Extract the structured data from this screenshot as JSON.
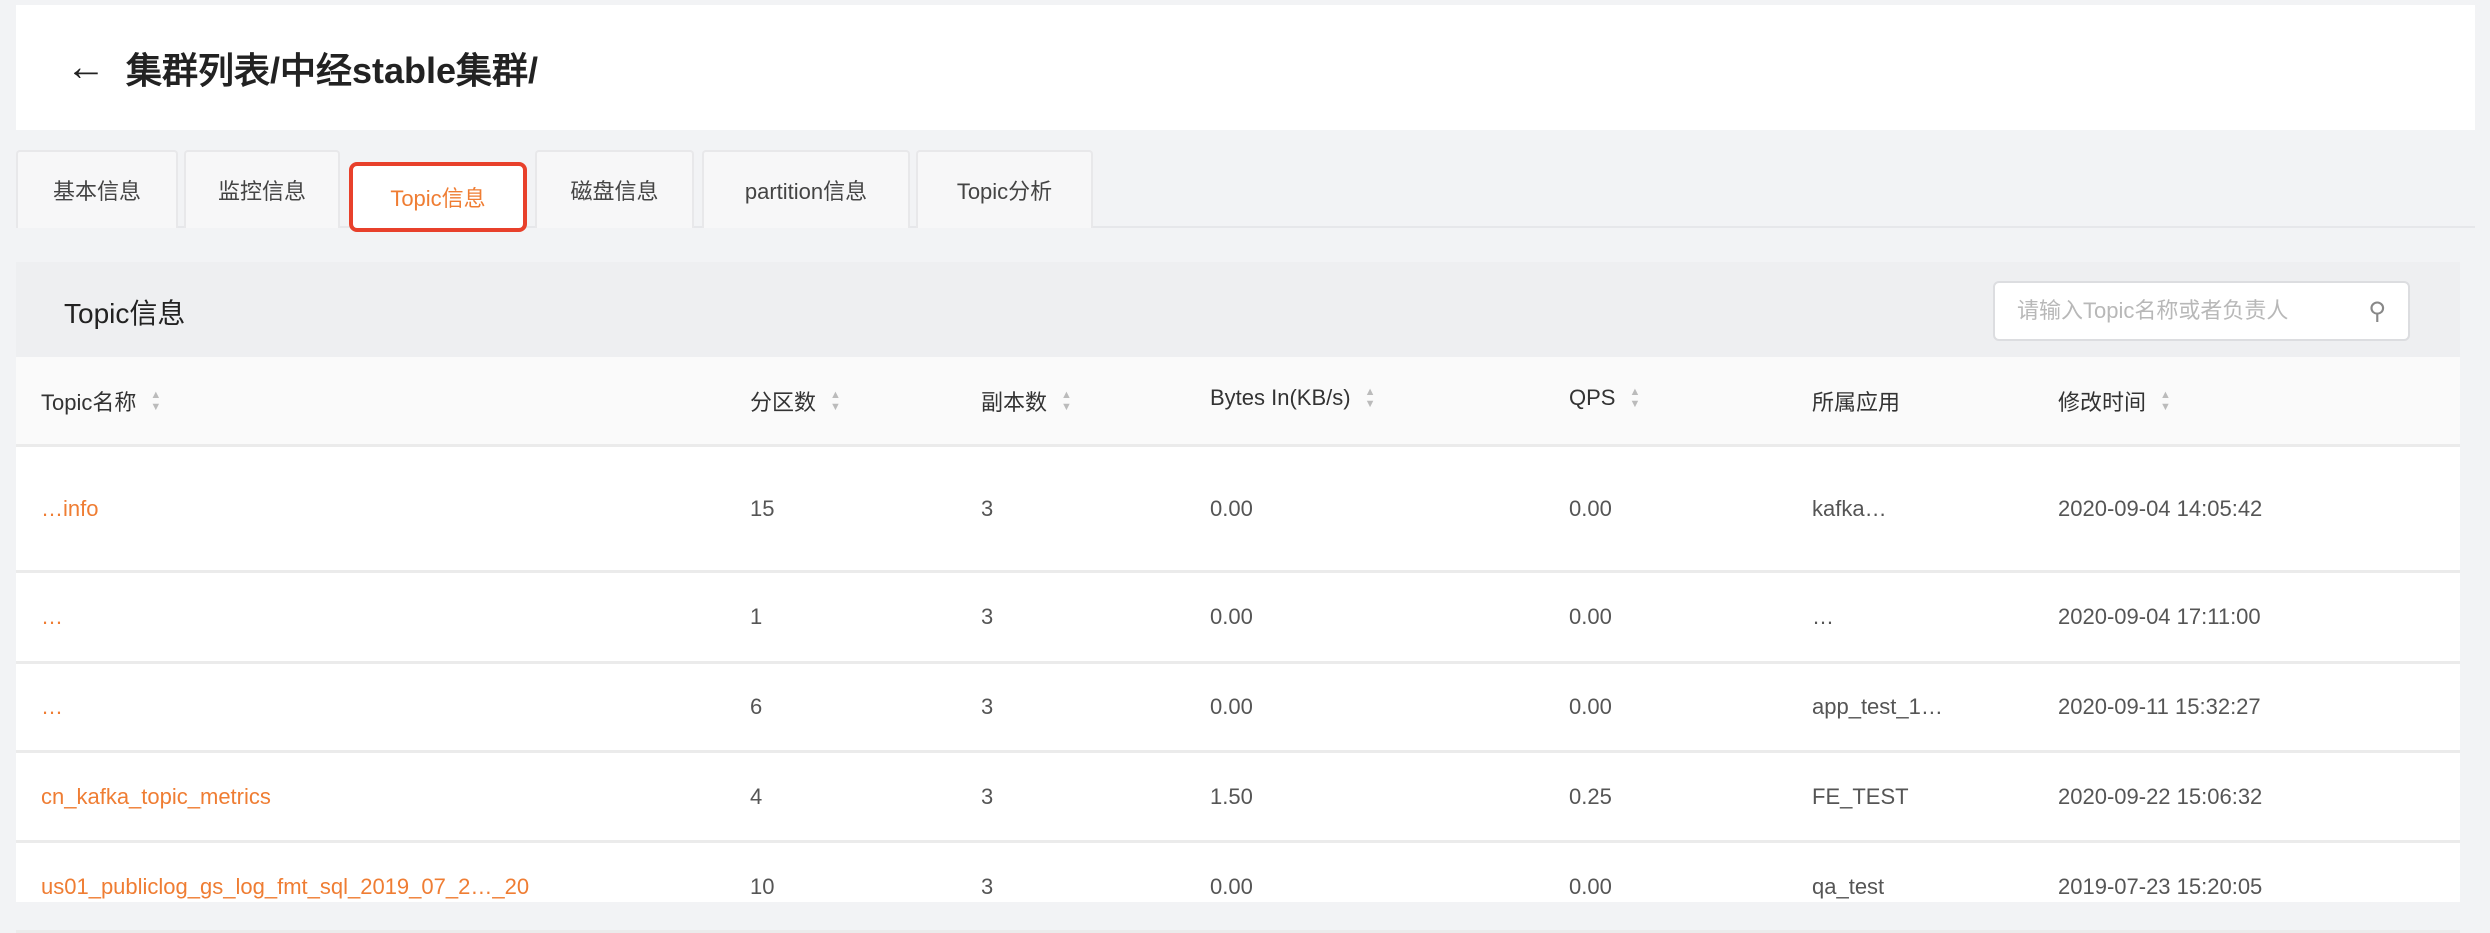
{
  "header": {
    "back_icon": "arrow-left-icon",
    "title": "集群列表/中经stable集群/"
  },
  "tabs": [
    {
      "label": "基本信息",
      "active": false
    },
    {
      "label": "监控信息",
      "active": false
    },
    {
      "label": "Topic信息",
      "active": true
    },
    {
      "label": "磁盘信息",
      "active": false
    },
    {
      "label": "partition信息",
      "active": false
    },
    {
      "label": "Topic分析",
      "active": false
    }
  ],
  "panel": {
    "title": "Topic信息",
    "search_placeholder": "请输入Topic名称或者负责人",
    "search_icon": "search-icon"
  },
  "table": {
    "columns": [
      "Topic名称",
      "分区数",
      "副本数",
      "Bytes In(KB/s)",
      "QPS",
      "所属应用",
      "修改时间"
    ],
    "rows": [
      {
        "name": "…info",
        "partitions": "15",
        "replicas": "3",
        "bytes_in": "0.00",
        "qps": "0.00",
        "app": "kafka…",
        "modified": "2020-09-04 14:05:42"
      },
      {
        "name": "…",
        "partitions": "1",
        "replicas": "3",
        "bytes_in": "0.00",
        "qps": "0.00",
        "app": "…",
        "modified": "2020-09-04 17:11:00"
      },
      {
        "name": "…",
        "partitions": "6",
        "replicas": "3",
        "bytes_in": "0.00",
        "qps": "0.00",
        "app": "app_test_1…",
        "modified": "2020-09-11 15:32:27"
      },
      {
        "name": "cn_kafka_topic_metrics",
        "partitions": "4",
        "replicas": "3",
        "bytes_in": "1.50",
        "qps": "0.25",
        "app": "FE_TEST",
        "modified": "2020-09-22 15:06:32"
      },
      {
        "name": "us01_publiclog_gs_log_fmt_sql_2019_07_2…_20",
        "partitions": "10",
        "replicas": "3",
        "bytes_in": "0.00",
        "qps": "0.00",
        "app": "qa_test",
        "modified": "2019-07-23 15:20:05"
      }
    ]
  },
  "colors": {
    "accent": "#ef7d33",
    "highlight_border": "#e8402b"
  }
}
